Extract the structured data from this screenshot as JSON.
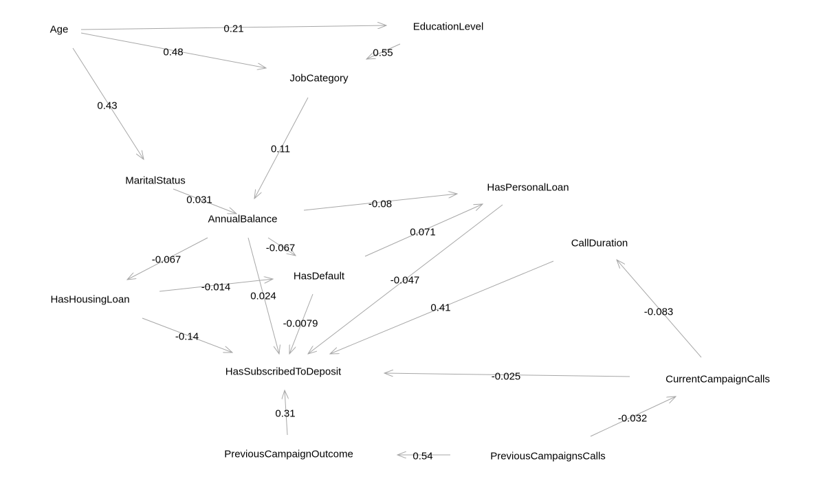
{
  "diagram": {
    "edge_color": "#a6a6a6",
    "text_color": "#000000",
    "nodes": [
      {
        "id": "age",
        "label": "Age"
      },
      {
        "id": "education",
        "label": "EducationLevel"
      },
      {
        "id": "job",
        "label": "JobCategory"
      },
      {
        "id": "marital",
        "label": "MaritalStatus"
      },
      {
        "id": "balance",
        "label": "AnnualBalance"
      },
      {
        "id": "personalloan",
        "label": "HasPersonalLoan"
      },
      {
        "id": "callduration",
        "label": "CallDuration"
      },
      {
        "id": "default",
        "label": "HasDefault"
      },
      {
        "id": "housing",
        "label": "HasHousingLoan"
      },
      {
        "id": "subscribed",
        "label": "HasSubscribedToDeposit"
      },
      {
        "id": "currentcalls",
        "label": "CurrentCampaignCalls"
      },
      {
        "id": "prevoutcome",
        "label": "PreviousCampaignOutcome"
      },
      {
        "id": "prevcalls",
        "label": "PreviousCampaignsCalls"
      }
    ],
    "edges": [
      {
        "from": "age",
        "to": "education",
        "weight": "0.21"
      },
      {
        "from": "age",
        "to": "job",
        "weight": "0.48"
      },
      {
        "from": "education",
        "to": "job",
        "weight": "0.55"
      },
      {
        "from": "age",
        "to": "marital",
        "weight": "0.43"
      },
      {
        "from": "job",
        "to": "balance",
        "weight": "0.11"
      },
      {
        "from": "marital",
        "to": "balance",
        "weight": "0.031"
      },
      {
        "from": "balance",
        "to": "personalloan",
        "weight": "-0.08"
      },
      {
        "from": "default",
        "to": "personalloan",
        "weight": "0.071"
      },
      {
        "from": "balance",
        "to": "default",
        "weight": "-0.067"
      },
      {
        "from": "balance",
        "to": "housing",
        "weight": "-0.067"
      },
      {
        "from": "housing",
        "to": "default",
        "weight": "-0.014"
      },
      {
        "from": "balance",
        "to": "subscribed",
        "weight": "0.024"
      },
      {
        "from": "personalloan",
        "to": "subscribed",
        "weight": "-0.047"
      },
      {
        "from": "callduration",
        "to": "subscribed",
        "weight": "0.41"
      },
      {
        "from": "default",
        "to": "subscribed",
        "weight": "-0.0079"
      },
      {
        "from": "housing",
        "to": "subscribed",
        "weight": "-0.14"
      },
      {
        "from": "currentcalls",
        "to": "callduration",
        "weight": "-0.083"
      },
      {
        "from": "currentcalls",
        "to": "subscribed",
        "weight": "-0.025"
      },
      {
        "from": "prevoutcome",
        "to": "subscribed",
        "weight": "0.31"
      },
      {
        "from": "prevcalls",
        "to": "currentcalls",
        "weight": "-0.032"
      },
      {
        "from": "prevcalls",
        "to": "prevoutcome",
        "weight": "0.54"
      }
    ]
  }
}
